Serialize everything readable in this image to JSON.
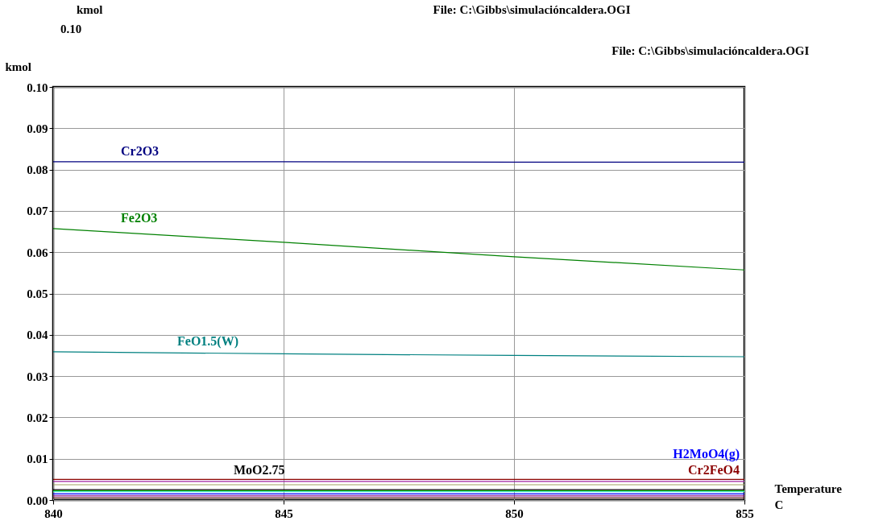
{
  "chart_data": {
    "type": "line",
    "title": "File: C:\\Gibbs\\simulacióncaldera.OGI",
    "ylabel": "kmol",
    "xlabel": "Temperature C",
    "annotations": [
      "kmol",
      "0.10",
      "File: C:\\Gibbs\\simulacióncaldera.OGI"
    ],
    "x": [
      840,
      845,
      850,
      855
    ],
    "series": [
      {
        "name": "Cr2O3",
        "color": "#000080",
        "values": [
          0.0819,
          0.0819,
          0.0818,
          0.0818
        ]
      },
      {
        "name": "Fe2O3",
        "color": "#008000",
        "values": [
          0.0657,
          0.0624,
          0.0589,
          0.0557
        ]
      },
      {
        "name": "FeO1.5(W)",
        "color": "#008080",
        "values": [
          0.0359,
          0.0354,
          0.035,
          0.0347
        ]
      },
      {
        "name": "Cr2FeO4",
        "color": "#8b0000",
        "values": [
          0.005,
          0.005,
          0.005,
          0.005
        ]
      },
      {
        "color": "#a020a0",
        "values": [
          0.0045,
          0.0045,
          0.0045,
          0.0045
        ]
      },
      {
        "color": "#a0a060",
        "values": [
          0.0037,
          0.0037,
          0.0037,
          0.0037
        ]
      },
      {
        "name": "MoO2.75",
        "color": "#000000",
        "values": [
          0.0025,
          0.0025,
          0.0025,
          0.0025
        ]
      },
      {
        "color": "#00c000",
        "values": [
          0.0022,
          0.0022,
          0.0022,
          0.0022
        ]
      },
      {
        "color": "#40e0e0",
        "values": [
          0.002,
          0.002,
          0.002,
          0.002
        ]
      },
      {
        "name": "H2MoO4(g)",
        "color": "#0000ff",
        "values": [
          0.0015,
          0.0015,
          0.0015,
          0.0015
        ]
      },
      {
        "color": "#800080",
        "values": [
          0.001,
          0.001,
          0.001,
          0.001
        ]
      },
      {
        "color": "#602020",
        "values": [
          0.0005,
          0.0005,
          0.0005,
          0.0005
        ]
      }
    ],
    "xlim": [
      840,
      855
    ],
    "xticks": [
      840,
      845,
      850,
      855
    ],
    "ylim": [
      0,
      0.1
    ],
    "yticks": [
      {
        "value": 0,
        "label": "0.00"
      },
      {
        "value": 0.01,
        "label": "0.01"
      },
      {
        "value": 0.02,
        "label": "0.02"
      },
      {
        "value": 0.03,
        "label": "0.03"
      },
      {
        "value": 0.04,
        "label": "0.04"
      },
      {
        "value": 0.05,
        "label": "0.05"
      },
      {
        "value": 0.06,
        "label": "0.06"
      },
      {
        "value": 0.07,
        "label": "0.07"
      },
      {
        "value": 0.08,
        "label": "0.08"
      },
      {
        "value": 0.09,
        "label": "0.09"
      },
      {
        "value": 0.1,
        "label": "0.10"
      }
    ],
    "grid": true,
    "legend": false,
    "marker": "none",
    "line_style": "solid"
  }
}
